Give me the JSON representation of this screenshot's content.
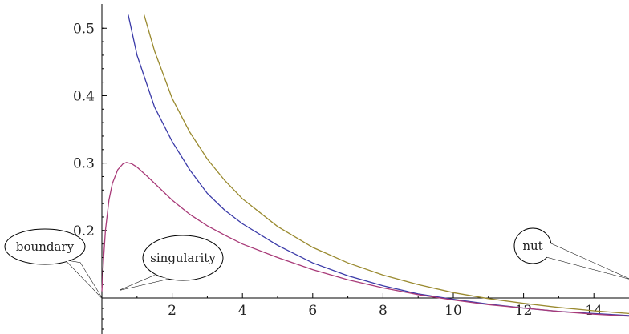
{
  "chart_data": {
    "type": "line",
    "title": "",
    "xlabel": "",
    "ylabel": "",
    "xlim": [
      0,
      15
    ],
    "ylim": [
      0.1,
      0.53
    ],
    "xticks": [
      2,
      4,
      6,
      8,
      10,
      12,
      14
    ],
    "yticks": [
      0.2,
      0.3,
      0.4,
      0.5
    ],
    "xtick_labels": [
      "2",
      "4",
      "6",
      "8",
      "10",
      "12",
      "14"
    ],
    "ytick_labels": [
      "0.2",
      "0.3",
      "0.4",
      "0.5"
    ],
    "grid": false,
    "series": [
      {
        "color": "#9a8a2f",
        "x": [
          1.2,
          1.5,
          2,
          2.5,
          3,
          3.5,
          4,
          5,
          6,
          7,
          8,
          9,
          10,
          11,
          12,
          13,
          14,
          15
        ],
        "y": [
          0.52,
          0.466,
          0.396,
          0.346,
          0.306,
          0.274,
          0.247,
          0.206,
          0.175,
          0.152,
          0.134,
          0.12,
          0.108,
          0.099,
          0.092,
          0.086,
          0.081,
          0.077
        ]
      },
      {
        "color": "#3a3aa8",
        "x": [
          0.75,
          1,
          1.5,
          2,
          2.5,
          3,
          3.5,
          4,
          5,
          6,
          7,
          8,
          9,
          10,
          11,
          12,
          13,
          14,
          15
        ],
        "y": [
          0.52,
          0.46,
          0.383,
          0.332,
          0.29,
          0.255,
          0.23,
          0.21,
          0.178,
          0.152,
          0.133,
          0.118,
          0.106,
          0.098,
          0.091,
          0.085,
          0.08,
          0.077,
          0.074
        ]
      },
      {
        "color": "#a83a78",
        "x": [
          0,
          0.05,
          0.1,
          0.2,
          0.3,
          0.45,
          0.6,
          0.7,
          0.85,
          1,
          1.3,
          1.6,
          2,
          2.5,
          3,
          3.5,
          4,
          5,
          6,
          7,
          8,
          9,
          10,
          11,
          12,
          13,
          14,
          15
        ],
        "y": [
          0.11,
          0.16,
          0.2,
          0.245,
          0.27,
          0.29,
          0.299,
          0.301,
          0.299,
          0.294,
          0.28,
          0.265,
          0.245,
          0.224,
          0.207,
          0.193,
          0.18,
          0.16,
          0.142,
          0.127,
          0.115,
          0.105,
          0.097,
          0.09,
          0.085,
          0.08,
          0.076,
          0.073
        ]
      }
    ],
    "annotations": [
      {
        "label": "boundary",
        "points_to": [
          0,
          0.11
        ]
      },
      {
        "label": "singularity",
        "points_to": [
          0.2,
          0.12
        ]
      },
      {
        "label": "nut",
        "points_to": [
          15,
          0.12
        ]
      }
    ]
  }
}
